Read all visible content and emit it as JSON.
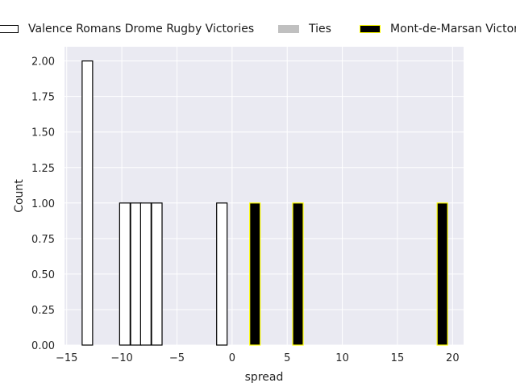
{
  "chart_data": {
    "type": "bar",
    "xlabel": "spread",
    "ylabel": "Count",
    "xlim": [
      -15.2,
      21.0
    ],
    "ylim": [
      0,
      2.1
    ],
    "grid": true,
    "legend_placement": "top",
    "xticks": [
      -15,
      -10,
      -5,
      0,
      5,
      10,
      15,
      20
    ],
    "xtick_labels": [
      "−15",
      "−10",
      "−5",
      "0",
      "5",
      "10",
      "15",
      "20"
    ],
    "yticks": [
      0,
      0.25,
      0.5,
      0.75,
      1.0,
      1.25,
      1.5,
      1.75,
      2.0
    ],
    "ytick_labels": [
      "0.00",
      "0.25",
      "0.50",
      "0.75",
      "1.00",
      "1.25",
      "1.50",
      "1.75",
      "2.00"
    ],
    "bin_width": 0.95,
    "series": [
      {
        "name": "Valence Romans Drome Rugby Victories",
        "fill": "#ffffff",
        "edge": "#000000",
        "bins": [
          {
            "start": -13.6,
            "count": 2
          },
          {
            "start": -10.2,
            "count": 1
          },
          {
            "start": -9.2,
            "count": 1
          },
          {
            "start": -8.3,
            "count": 1
          },
          {
            "start": -7.3,
            "count": 1
          },
          {
            "start": -1.4,
            "count": 1
          }
        ]
      },
      {
        "name": "Ties",
        "fill": "#c0c0c0",
        "edge": "#c0c0c0",
        "bins": []
      },
      {
        "name": "Mont-de-Marsan Victories",
        "fill": "#000000",
        "edge": "#ffff00",
        "bins": [
          {
            "start": 1.6,
            "count": 1
          },
          {
            "start": 5.5,
            "count": 1
          },
          {
            "start": 18.6,
            "count": 1
          }
        ]
      }
    ]
  },
  "colors": {
    "plot_background": "#eaeaf2",
    "grid": "#ffffff",
    "text": "#262626"
  }
}
